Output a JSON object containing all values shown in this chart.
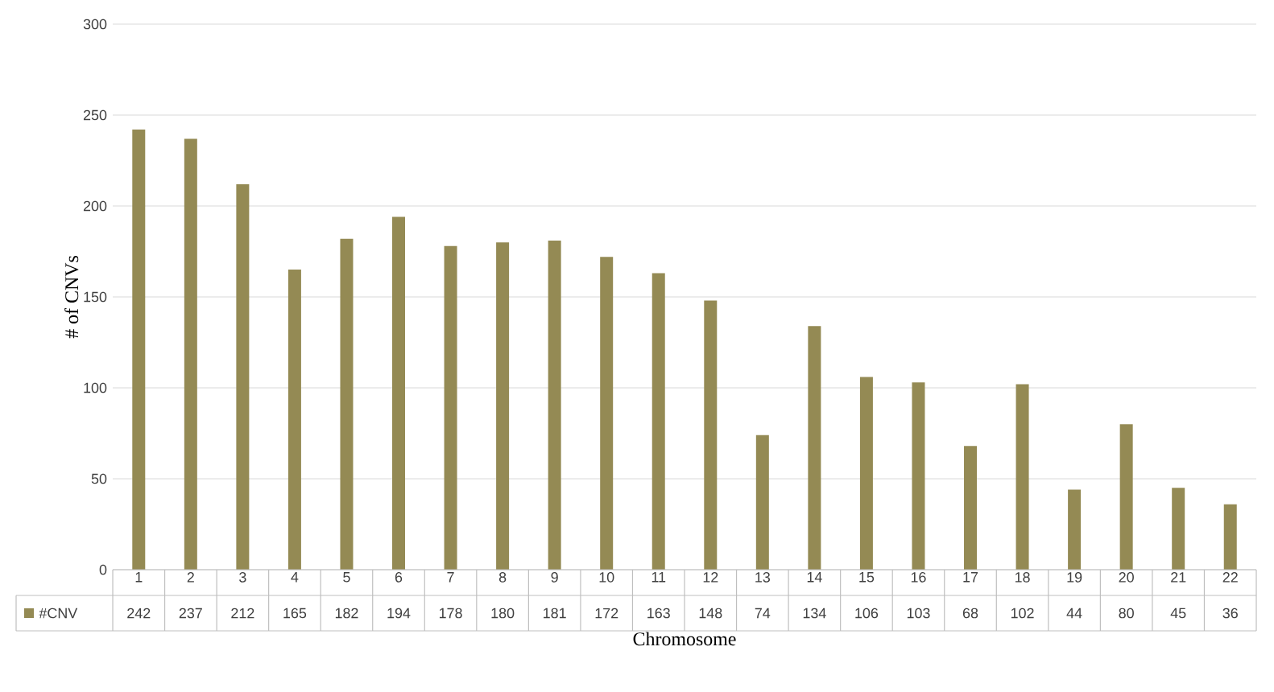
{
  "chart_data": {
    "type": "bar",
    "xlabel": "Chromosome",
    "ylabel": "# of CNVs",
    "categories": [
      "1",
      "2",
      "3",
      "4",
      "5",
      "6",
      "7",
      "8",
      "9",
      "10",
      "11",
      "12",
      "13",
      "14",
      "15",
      "16",
      "17",
      "18",
      "19",
      "20",
      "21",
      "22"
    ],
    "series": [
      {
        "name": "#CNV",
        "color": "#948a54",
        "values": [
          242,
          237,
          212,
          165,
          182,
          194,
          178,
          180,
          181,
          172,
          163,
          148,
          74,
          134,
          106,
          103,
          68,
          102,
          44,
          80,
          45,
          36
        ]
      }
    ],
    "ylim": [
      0,
      300
    ],
    "yticks": [
      0,
      50,
      100,
      150,
      200,
      250,
      300
    ],
    "grid": "y",
    "data_labels": true
  }
}
